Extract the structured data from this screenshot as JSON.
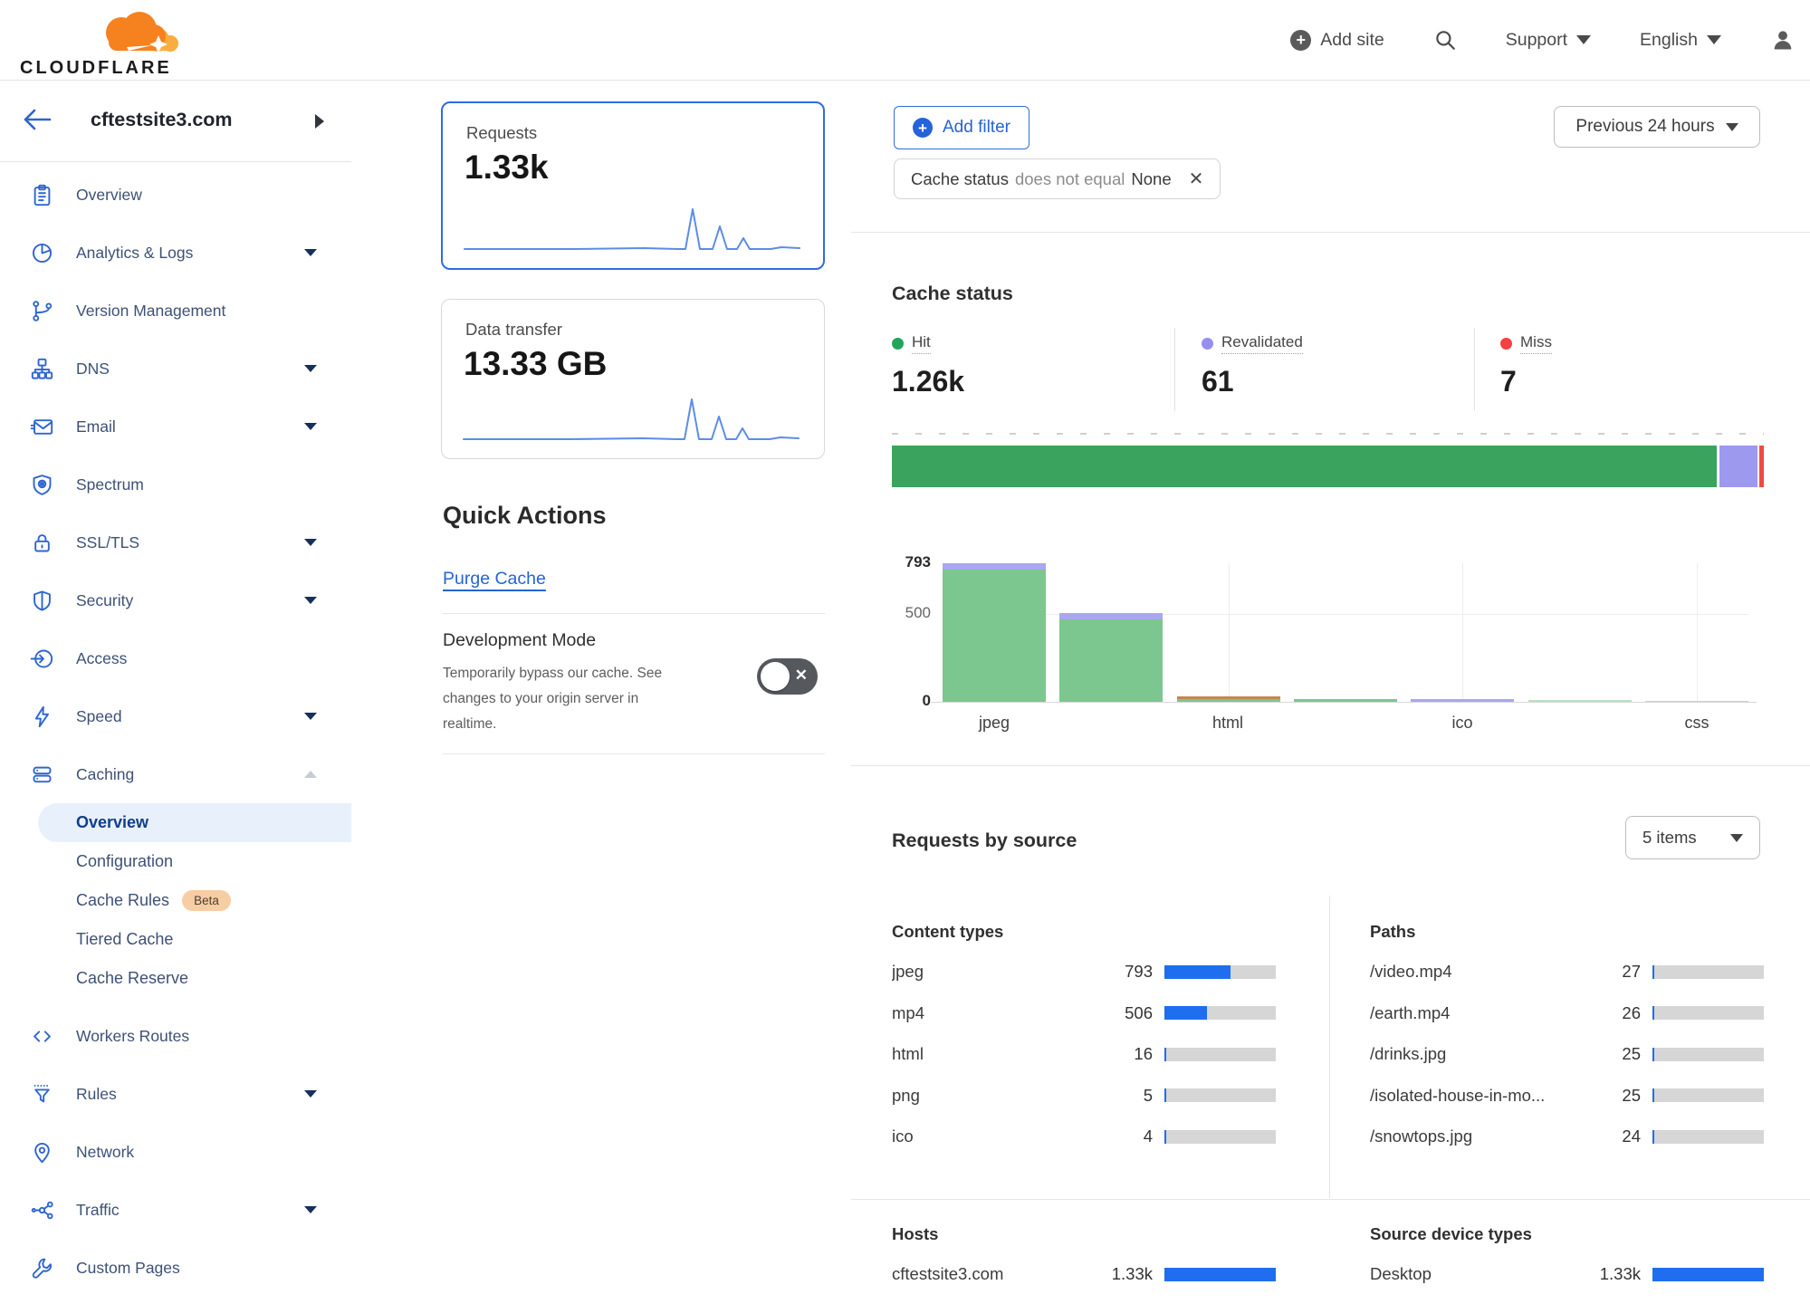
{
  "header": {
    "brand": "CLOUDFLARE",
    "add_site": "Add site",
    "support": "Support",
    "language": "English"
  },
  "sidebar": {
    "site_name": "cftestsite3.com",
    "items": [
      {
        "label": "Overview"
      },
      {
        "label": "Analytics & Logs",
        "expandable": true
      },
      {
        "label": "Version Management"
      },
      {
        "label": "DNS",
        "expandable": true
      },
      {
        "label": "Email",
        "expandable": true
      },
      {
        "label": "Spectrum"
      },
      {
        "label": "SSL/TLS",
        "expandable": true
      },
      {
        "label": "Security",
        "expandable": true
      },
      {
        "label": "Access"
      },
      {
        "label": "Speed",
        "expandable": true
      },
      {
        "label": "Caching",
        "expandable": true,
        "expanded": true
      },
      {
        "label": "Workers Routes"
      },
      {
        "label": "Rules",
        "expandable": true
      },
      {
        "label": "Network"
      },
      {
        "label": "Traffic",
        "expandable": true
      },
      {
        "label": "Custom Pages"
      }
    ],
    "caching_subitems": [
      {
        "label": "Overview",
        "active": true
      },
      {
        "label": "Configuration"
      },
      {
        "label": "Cache Rules",
        "badge": "Beta"
      },
      {
        "label": "Tiered Cache"
      },
      {
        "label": "Cache Reserve"
      }
    ]
  },
  "summary_cards": {
    "requests": {
      "label": "Requests",
      "value": "1.33k"
    },
    "data_transfer": {
      "label": "Data transfer",
      "value": "13.33 GB"
    }
  },
  "quick_actions": {
    "title": "Quick Actions",
    "purge_cache": "Purge Cache",
    "development_mode": {
      "title": "Development Mode",
      "description": "Temporarily bypass our cache. See changes to your origin server in realtime.",
      "state": "off",
      "toggle_glyph": "✕"
    }
  },
  "filter_bar": {
    "add_filter": "Add filter",
    "chip": {
      "field": "Cache status",
      "operator": "does not equal",
      "value": "None"
    },
    "time_range": "Previous 24 hours"
  },
  "cache_status": {
    "title": "Cache status",
    "stats": [
      {
        "label": "Hit",
        "value": "1.26k",
        "color": "#22a45c",
        "pct": 94.9
      },
      {
        "label": "Revalidated",
        "value": "61",
        "color": "#958ff2",
        "pct": 4.6
      },
      {
        "label": "Miss",
        "value": "7",
        "color": "#f34141",
        "pct": 0.5
      }
    ]
  },
  "chart_data": [
    {
      "type": "line",
      "name": "requests-sparkline",
      "title": "Requests over previous 24 hours (no axes shown)",
      "normalized_values": [
        0.02,
        0.02,
        0.02,
        0.02,
        0.02,
        0.02,
        0.02,
        0.02,
        0.02,
        0.02,
        0.02,
        0.02,
        0.03,
        0.02,
        0.85,
        0.05,
        0.45,
        0.04,
        0.22,
        0.03,
        0.02
      ]
    },
    {
      "type": "line",
      "name": "data-transfer-sparkline",
      "title": "Data transfer over previous 24 hours (no axes shown)",
      "normalized_values": [
        0.02,
        0.02,
        0.02,
        0.02,
        0.02,
        0.02,
        0.02,
        0.02,
        0.02,
        0.02,
        0.02,
        0.02,
        0.03,
        0.02,
        0.85,
        0.05,
        0.45,
        0.04,
        0.22,
        0.03,
        0.02
      ]
    },
    {
      "type": "stacked-bar-single",
      "name": "cache-status-distribution",
      "segments": [
        {
          "label": "Hit",
          "value": 1260,
          "color": "#3aa45e"
        },
        {
          "label": "Revalidated",
          "value": 61,
          "color": "#9d99ef"
        },
        {
          "label": "Miss",
          "value": 7,
          "color": "#ee4b41"
        }
      ]
    },
    {
      "type": "bar",
      "name": "cache-status-by-content-type",
      "stacked": true,
      "ylim": [
        0,
        793
      ],
      "y_ticks": [
        "0",
        "500",
        "793"
      ],
      "x_tick_labels": [
        "jpeg",
        "html",
        "ico",
        "css"
      ],
      "legend_position": "none",
      "grid": "horizontal line at 500, vertical lines at labeled bars",
      "bars": [
        {
          "label": "jpeg",
          "total": 793,
          "segments": [
            {
              "name": "hit",
              "value": 757,
              "hpct": 95.4
            },
            {
              "name": "revalidated",
              "value": 36,
              "hpct": 4.6
            }
          ]
        },
        {
          "label": "",
          "total": 506,
          "segments": [
            {
              "name": "hit",
              "value": 480,
              "hpct": 59.2
            },
            {
              "name": "revalidated",
              "value": 26,
              "hpct": 4.6
            }
          ]
        },
        {
          "label": "html",
          "total": 16,
          "segments": [
            {
              "name": "hit",
              "value": 9,
              "hpct": 1.7
            },
            {
              "name": "other",
              "value": 7,
              "hpct": 2.5
            }
          ]
        },
        {
          "label": "",
          "total": 5,
          "segments": [
            {
              "name": "hit",
              "value": 5,
              "hpct": 1.7
            }
          ]
        },
        {
          "label": "ico",
          "total": 4,
          "segments": [
            {
              "name": "revalidated",
              "value": 4,
              "hpct": 1.7
            }
          ]
        },
        {
          "label": "",
          "total": 2,
          "segments": [
            {
              "name": "hit",
              "value": 2,
              "hpct": 1.1
            }
          ]
        },
        {
          "label": "css",
          "total": 1,
          "segments": [
            {
              "name": "other-gray",
              "value": 1,
              "hpct": 0.8
            }
          ]
        }
      ],
      "colors": {
        "hit": "#7bc78f",
        "revalidated": "#aaa6f0",
        "other": "#c9854d",
        "other-gray": "#cfcfcf"
      }
    }
  ],
  "requests_by_source": {
    "title": "Requests by source",
    "items_selector": "5 items",
    "content_types": {
      "title": "Content types",
      "rows": [
        {
          "label": "jpeg",
          "value": "793",
          "pct": 59.6
        },
        {
          "label": "mp4",
          "value": "506",
          "pct": 38.0
        },
        {
          "label": "html",
          "value": "16",
          "pct": 1.2
        },
        {
          "label": "png",
          "value": "5",
          "pct": 0.4
        },
        {
          "label": "ico",
          "value": "4",
          "pct": 0.3
        }
      ]
    },
    "paths": {
      "title": "Paths",
      "rows": [
        {
          "label": "/video.mp4",
          "value": "27",
          "pct": 2.0
        },
        {
          "label": "/earth.mp4",
          "value": "26",
          "pct": 2.0
        },
        {
          "label": "/drinks.jpg",
          "value": "25",
          "pct": 1.9
        },
        {
          "label": "/isolated-house-in-mo...",
          "value": "25",
          "pct": 1.9
        },
        {
          "label": "/snowtops.jpg",
          "value": "24",
          "pct": 1.8
        }
      ]
    },
    "hosts": {
      "title": "Hosts",
      "rows": [
        {
          "label": "cftestsite3.com",
          "value": "1.33k",
          "pct": 100
        }
      ]
    },
    "source_device_types": {
      "title": "Source device types",
      "rows": [
        {
          "label": "Desktop",
          "value": "1.33k",
          "pct": 100
        }
      ]
    }
  }
}
